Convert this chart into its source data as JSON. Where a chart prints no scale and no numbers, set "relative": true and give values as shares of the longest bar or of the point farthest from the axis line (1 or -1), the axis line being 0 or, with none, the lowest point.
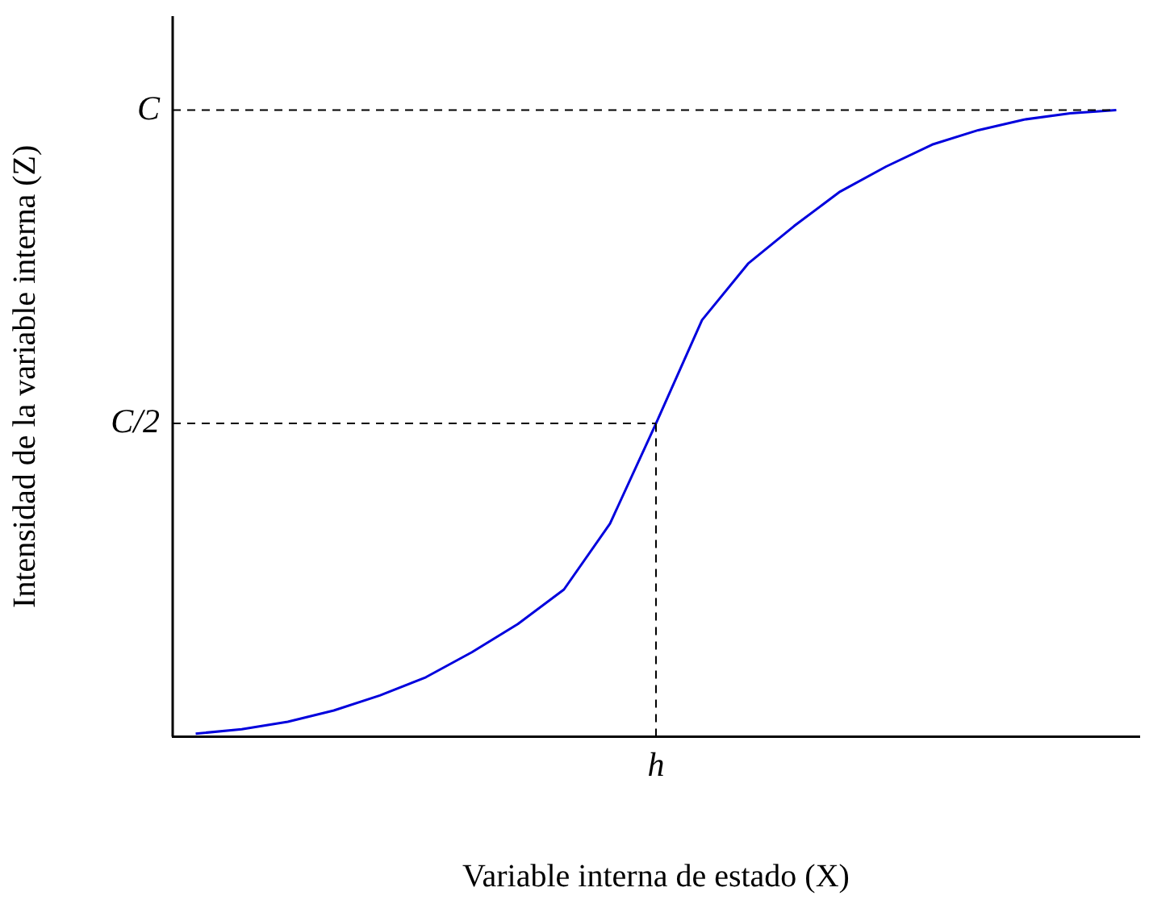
{
  "chart_data": {
    "type": "line",
    "relative": true,
    "xlabel": "Variable interna de estado (X)",
    "ylabel": "Intensidad de la variable interna (Z)",
    "categories": [
      null,
      null,
      null,
      null,
      null,
      null,
      null,
      null,
      null,
      null,
      null,
      null,
      null,
      null,
      null,
      null,
      null,
      null,
      null,
      null,
      null
    ],
    "annotations": [
      {
        "text": "h",
        "y": 0.5
      }
    ],
    "legend": false,
    "marker": "none",
    "line_style": "solid",
    "ref_lines": [
      {
        "axis": "y",
        "value": 1,
        "label": "C",
        "color": "#000000",
        "line_style": "dashed"
      },
      {
        "axis": "y",
        "value": 0.5,
        "label": "C/2",
        "color": "#000000",
        "line_style": "dashed"
      }
    ],
    "series": [
      {
        "color": "#0000dd",
        "values": [
          0.005,
          0.012,
          0.024,
          0.042,
          0.066,
          0.095,
          0.135,
          0.18,
          0.235,
          0.34,
          0.5,
          0.665,
          0.755,
          0.815,
          0.87,
          0.91,
          0.945,
          0.968,
          0.985,
          0.995,
          1.0
        ]
      }
    ]
  }
}
